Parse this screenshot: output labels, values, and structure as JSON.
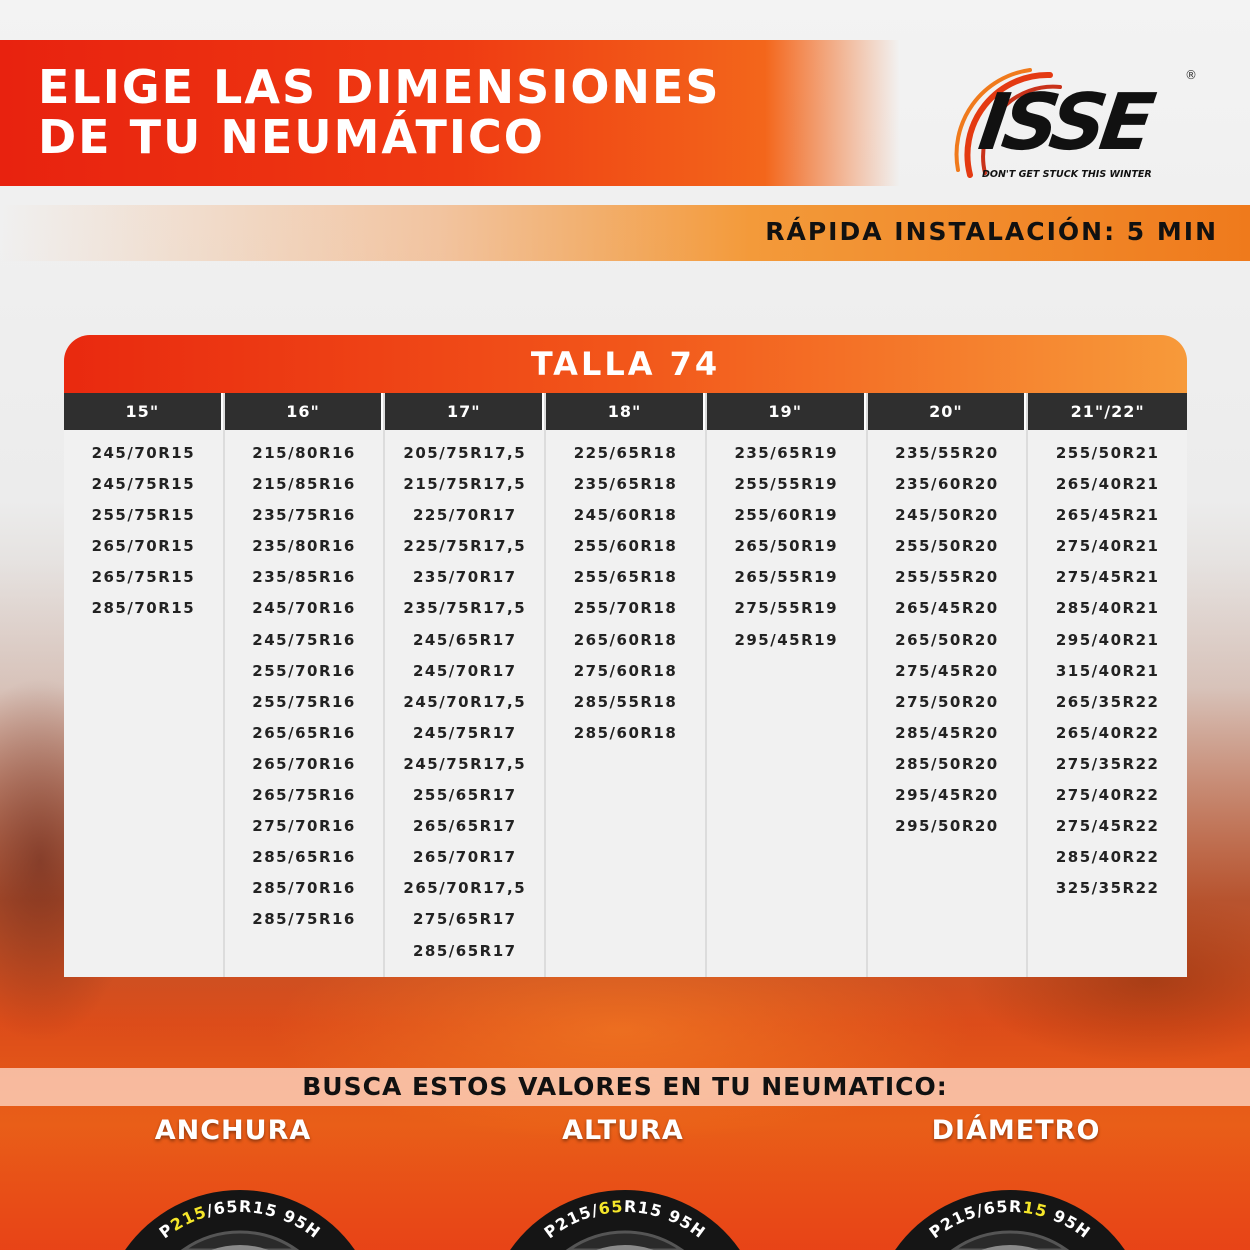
{
  "header": {
    "title_line1": "ELIGE LAS DIMENSIONES",
    "title_line2": "DE TU NEUMÁTICO"
  },
  "logo": {
    "brand": "ISSE",
    "registered": "®",
    "slogan": "DON'T GET STUCK THIS WINTER"
  },
  "install": "RÁPIDA INSTALACIÓN: 5 MIN",
  "table": {
    "title": "TALLA 74",
    "columns": [
      {
        "header": "15\"",
        "sizes": [
          "245/70R15",
          "245/75R15",
          "255/75R15",
          "265/70R15",
          "265/75R15",
          "285/70R15"
        ]
      },
      {
        "header": "16\"",
        "sizes": [
          "215/80R16",
          "215/85R16",
          "235/75R16",
          "235/80R16",
          "235/85R16",
          "245/70R16",
          "245/75R16",
          "255/70R16",
          "255/75R16",
          "265/65R16",
          "265/70R16",
          "265/75R16",
          "275/70R16",
          "285/65R16",
          "285/70R16",
          "285/75R16"
        ]
      },
      {
        "header": "17\"",
        "sizes": [
          "205/75R17,5",
          "215/75R17,5",
          "225/70R17",
          "225/75R17,5",
          "235/70R17",
          "235/75R17,5",
          "245/65R17",
          "245/70R17",
          "245/70R17,5",
          "245/75R17",
          "245/75R17,5",
          "255/65R17",
          "265/65R17",
          "265/70R17",
          "265/70R17,5",
          "275/65R17",
          "285/65R17"
        ]
      },
      {
        "header": "18\"",
        "sizes": [
          "225/65R18",
          "235/65R18",
          "245/60R18",
          "255/60R18",
          "255/65R18",
          "255/70R18",
          "265/60R18",
          "275/60R18",
          "285/55R18",
          "285/60R18"
        ]
      },
      {
        "header": "19\"",
        "sizes": [
          "235/65R19",
          "255/55R19",
          "255/60R19",
          "265/50R19",
          "265/55R19",
          "275/55R19",
          "295/45R19"
        ]
      },
      {
        "header": "20\"",
        "sizes": [
          "235/55R20",
          "235/60R20",
          "245/50R20",
          "255/50R20",
          "255/55R20",
          "265/45R20",
          "265/50R20",
          "275/45R20",
          "275/50R20",
          "285/45R20",
          "285/50R20",
          "295/45R20",
          "295/50R20"
        ]
      },
      {
        "header": "21\"/22\"",
        "sizes": [
          "255/50R21",
          "265/40R21",
          "265/45R21",
          "275/40R21",
          "275/45R21",
          "285/40R21",
          "295/40R21",
          "315/40R21",
          "265/35R22",
          "265/40R22",
          "275/35R22",
          "275/40R22",
          "275/45R22",
          "285/40R22",
          "325/35R22"
        ]
      }
    ]
  },
  "guide": {
    "heading": "BUSCA ESTOS VALORES EN TU NEUMATICO:",
    "highlight_color": "#f5e62a",
    "tires": [
      {
        "label": "ANCHURA",
        "parts": [
          "P",
          "215",
          "/65R15 95H"
        ]
      },
      {
        "label": "ALTURA",
        "parts": [
          "P215/",
          "65",
          "R15 95H"
        ]
      },
      {
        "label": "DIÁMETRO",
        "parts": [
          "P215/65R",
          "15",
          " 95H"
        ]
      }
    ]
  }
}
